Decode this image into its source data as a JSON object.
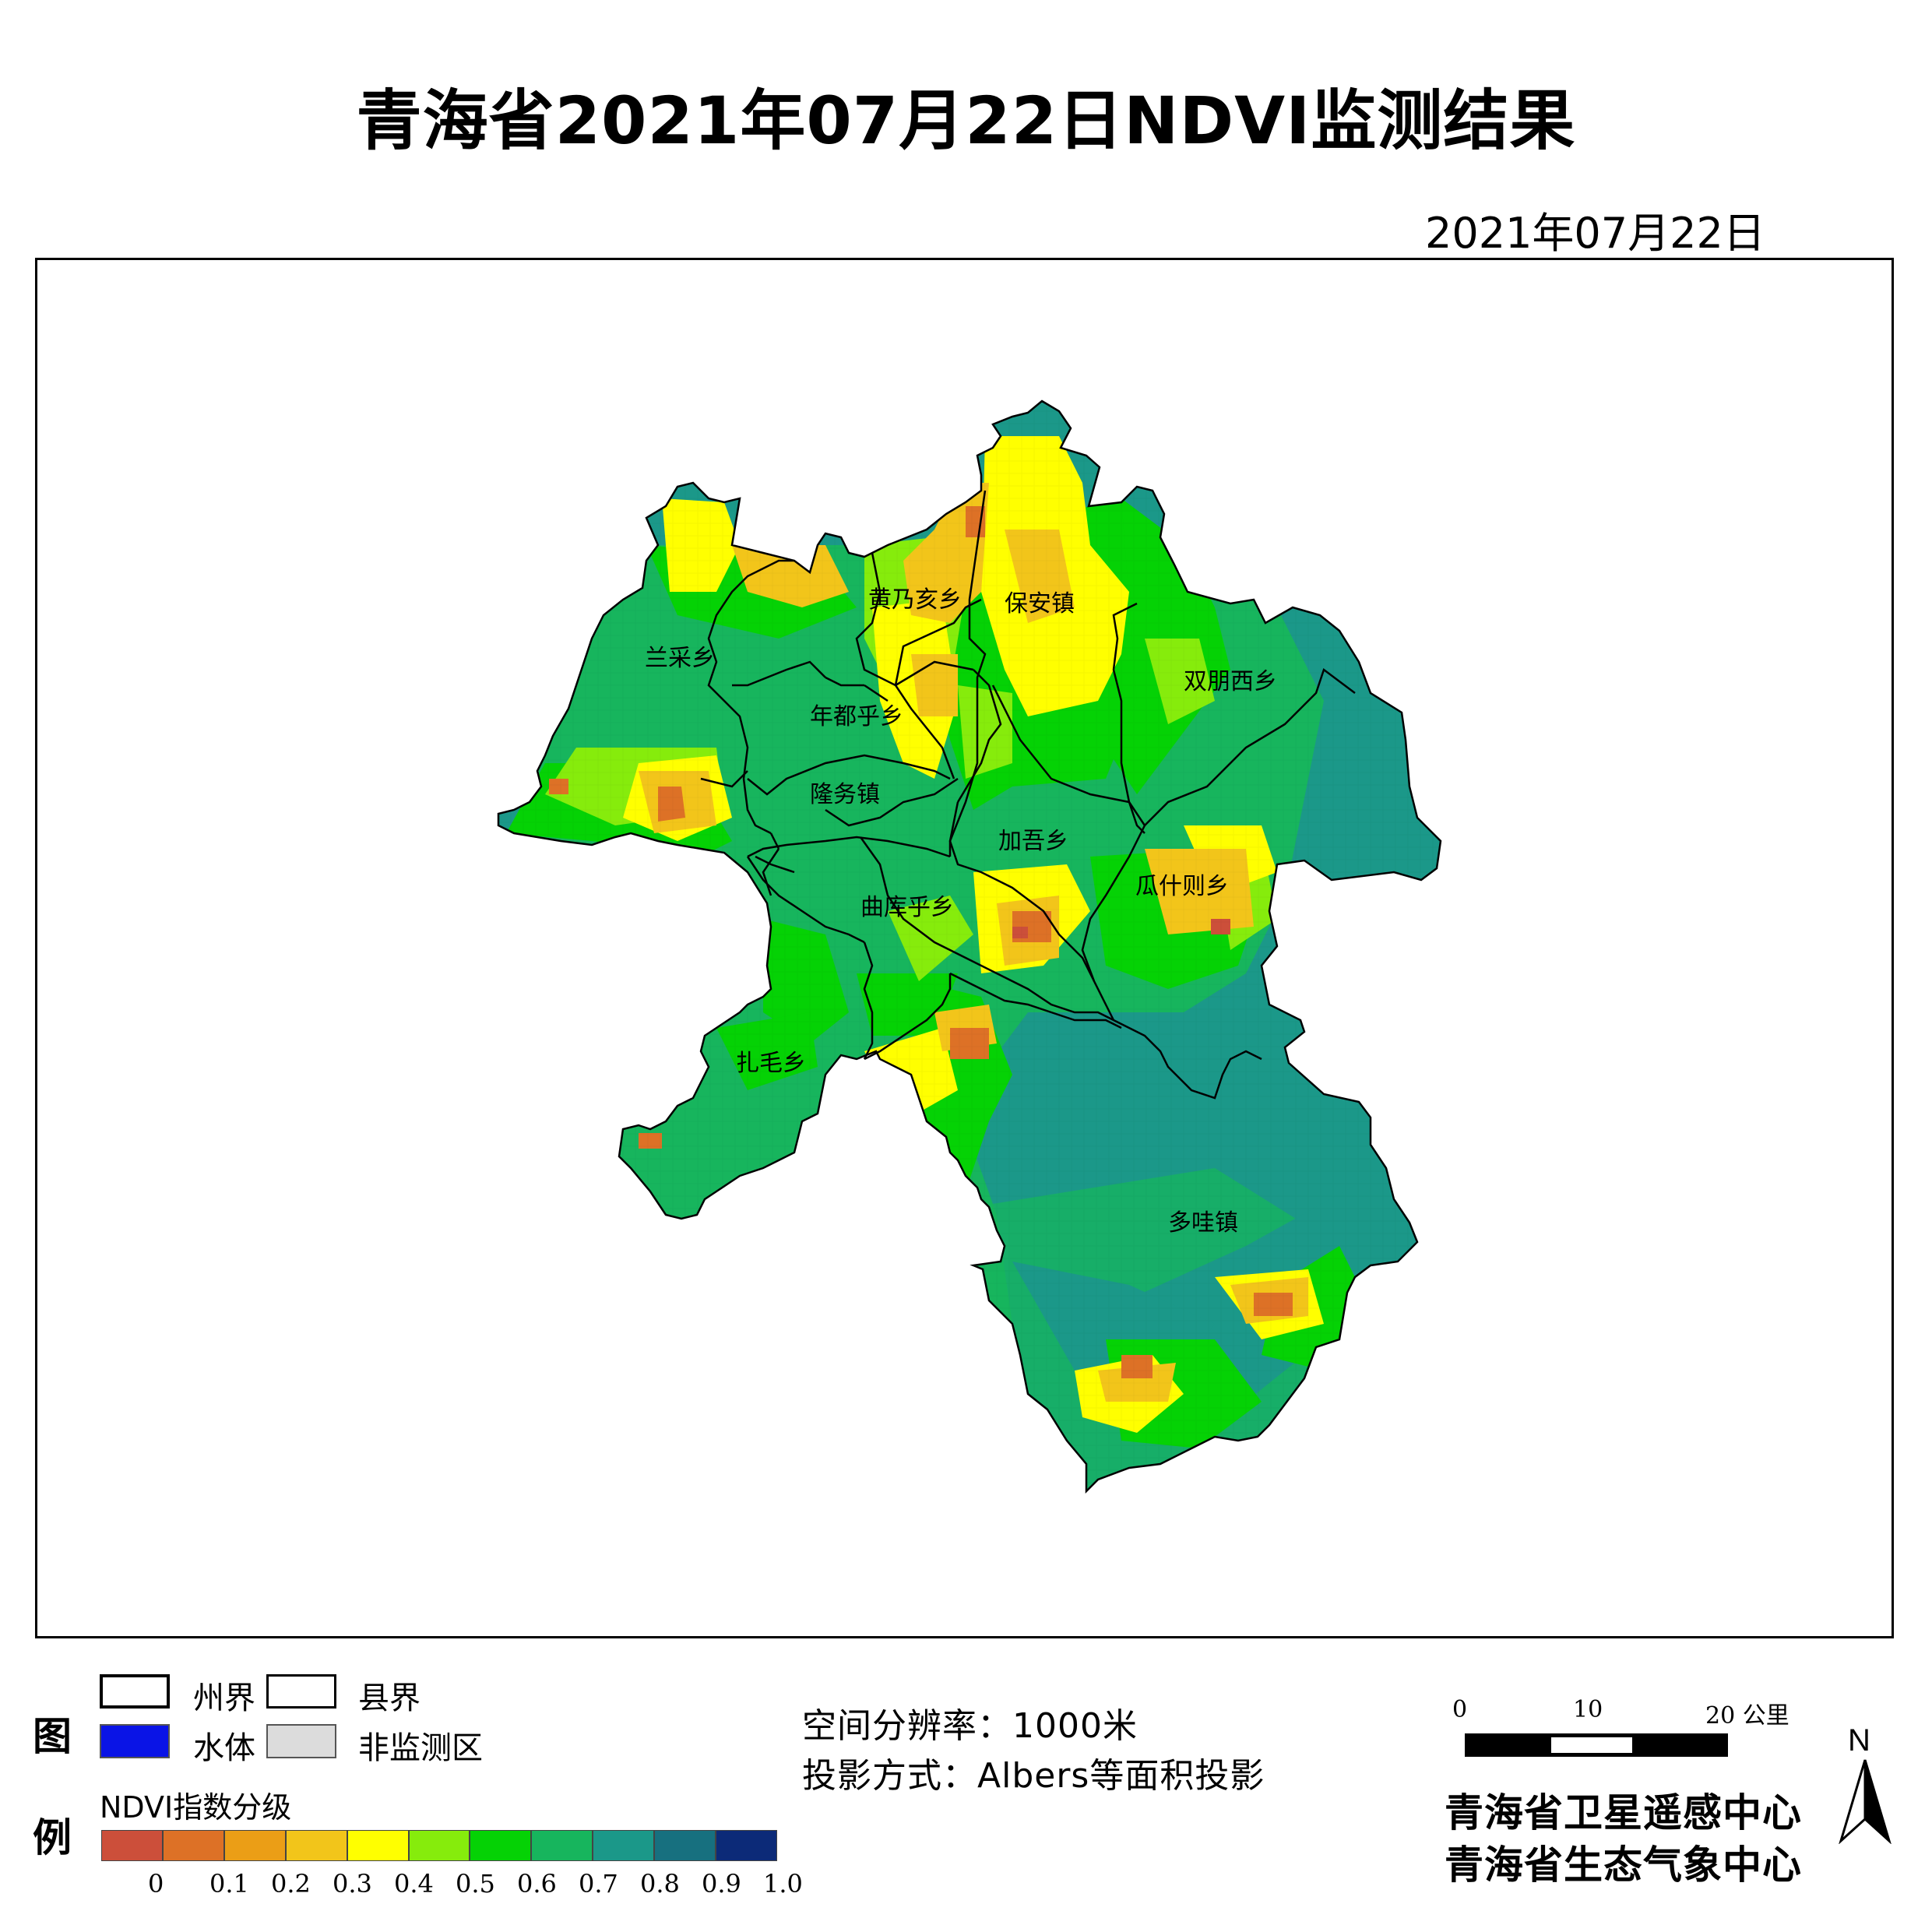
{
  "title": "青海省2021年07月22日NDVI监测结果",
  "date": "2021年07月22日",
  "places": [
    "黄乃亥乡",
    "保安镇",
    "兰采乡",
    "双朋西乡",
    "年都乎乡",
    "隆务镇",
    "加吾乡",
    "瓜什则乡",
    "曲库乎乡",
    "扎毛乡",
    "多哇镇"
  ],
  "legend": {
    "heading_1": "图",
    "heading_2": "例",
    "state_boundary": "州界",
    "county_boundary": "县界",
    "water": "水体",
    "non_monitored": "非监测区",
    "ndvi_label": "NDVI指数分级",
    "class_colors": [
      "#cc4f3a",
      "#dd7126",
      "#eb9e16",
      "#f2c51a",
      "#ffff00",
      "#86ec0c",
      "#05d205",
      "#17b55d",
      "#1b9889",
      "#17707f",
      "#0c2a78"
    ],
    "class_ticks": [
      "0",
      "0.1",
      "0.2",
      "0.3",
      "0.4",
      "0.5",
      "0.6",
      "0.7",
      "0.8",
      "0.9",
      "1.0"
    ]
  },
  "info": {
    "resolution": "空间分辨率：1000米",
    "projection": "投影方式：Albers等面积投影"
  },
  "scale_bar": {
    "ticks": [
      "0",
      "10",
      "20 公里"
    ]
  },
  "north_arrow": {
    "label": "N",
    "icon": "north-arrow-icon"
  },
  "organizations": [
    "青海省卫星遥感中心",
    "青海省生态气象中心"
  ]
}
